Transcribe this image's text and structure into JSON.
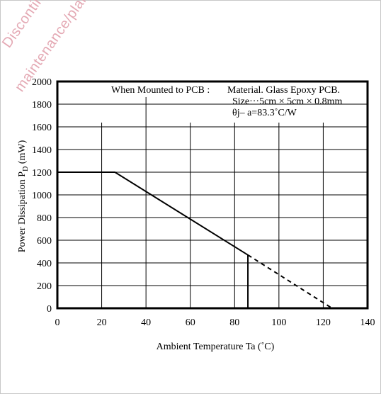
{
  "watermark": [
    "Discontinued",
    "maintenance/planned"
  ],
  "chart_data": {
    "type": "line",
    "xlabel": "Ambient Temperature  Ta (˚C)",
    "ylabel_prefix": "Power Dissipation  P",
    "ylabel_sub": "D",
    "ylabel_suffix": " (mW)",
    "xlim": [
      0,
      140
    ],
    "ylim": [
      0,
      2000
    ],
    "xticks": [
      0,
      20,
      40,
      60,
      80,
      100,
      120,
      140
    ],
    "yticks": [
      0,
      200,
      400,
      600,
      800,
      1000,
      1200,
      1400,
      1600,
      1800,
      2000
    ],
    "grid": true,
    "series": [
      {
        "style": "solid",
        "x": [
          0,
          26,
          86
        ],
        "y": [
          1200,
          1200,
          470
        ]
      },
      {
        "style": "solid",
        "x": [
          86,
          86
        ],
        "y": [
          470,
          0
        ]
      },
      {
        "style": "dashed",
        "x": [
          86,
          124
        ],
        "y": [
          470,
          0
        ]
      }
    ],
    "annotation": {
      "condition": "When Mounted to PCB :",
      "lines": [
        "Material. Glass Epoxy PCB.",
        "Size···5cm × 5cm × 0.8mm",
        "θj– a=83.3˚C/W"
      ]
    },
    "colors": {
      "line": "#000000",
      "grid": "#000000"
    }
  }
}
